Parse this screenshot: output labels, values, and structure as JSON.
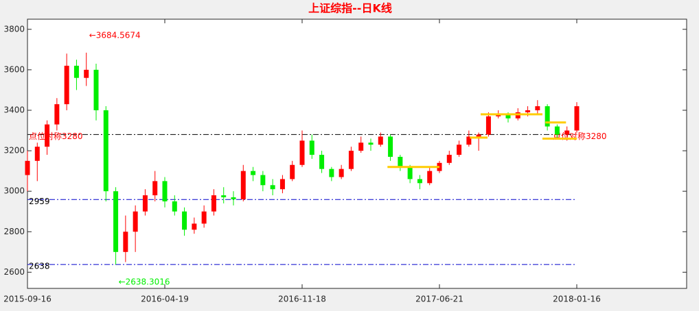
{
  "chart_data": {
    "type": "candlestick",
    "title": "上证综指--日K线",
    "xlim": [
      0,
      672
    ],
    "xticks": [
      {
        "value": 0,
        "label": "2015-09-16"
      },
      {
        "value": 140,
        "label": "2016-04-19"
      },
      {
        "value": 280,
        "label": "2016-11-18"
      },
      {
        "value": 420,
        "label": "2017-06-21"
      },
      {
        "value": 560,
        "label": "2018-01-16"
      }
    ],
    "ylim": [
      2520,
      3850
    ],
    "yticks": [
      2600,
      2800,
      3000,
      3200,
      3400,
      3600,
      3800
    ],
    "up_color": "#ff0000",
    "down_color": "#00ee00",
    "x": [
      0,
      10,
      20,
      30,
      40,
      50,
      60,
      70,
      80,
      90,
      100,
      110,
      120,
      130,
      140,
      150,
      160,
      170,
      180,
      190,
      200,
      210,
      220,
      230,
      240,
      250,
      260,
      270,
      280,
      290,
      300,
      310,
      320,
      330,
      340,
      350,
      360,
      370,
      380,
      390,
      400,
      410,
      420,
      430,
      440,
      450,
      460,
      470,
      480,
      490,
      500,
      510,
      520,
      530,
      540,
      550,
      560
    ],
    "open": [
      3080,
      3150,
      3220,
      3330,
      3430,
      3620,
      3560,
      3600,
      3400,
      3000,
      2700,
      2800,
      2900,
      2980,
      3050,
      2950,
      2900,
      2810,
      2840,
      2900,
      2980,
      2970,
      2960,
      3100,
      3080,
      3030,
      3010,
      3060,
      3130,
      3250,
      3180,
      3110,
      3070,
      3110,
      3200,
      3240,
      3230,
      3270,
      3170,
      3120,
      3060,
      3040,
      3100,
      3140,
      3180,
      3230,
      3270,
      3280,
      3370,
      3380,
      3360,
      3390,
      3400,
      3420,
      3320,
      3280,
      3300
    ],
    "high": [
      3200,
      3240,
      3350,
      3460,
      3680,
      3650,
      3684.5674,
      3630,
      3420,
      3020,
      2880,
      2930,
      3010,
      3100,
      3070,
      2980,
      2920,
      2870,
      2930,
      3010,
      3020,
      3000,
      3130,
      3120,
      3100,
      3060,
      3080,
      3150,
      3300,
      3280,
      3200,
      3120,
      3130,
      3220,
      3270,
      3260,
      3290,
      3280,
      3180,
      3130,
      3080,
      3120,
      3150,
      3200,
      3250,
      3300,
      3290,
      3390,
      3400,
      3390,
      3410,
      3420,
      3450,
      3430,
      3330,
      3320,
      3440
    ],
    "low": [
      3000,
      3050,
      3180,
      3300,
      3400,
      3500,
      3520,
      3350,
      2950,
      2638.3016,
      2650,
      2700,
      2880,
      2950,
      2920,
      2880,
      2780,
      2790,
      2820,
      2880,
      2940,
      2930,
      2950,
      3050,
      3000,
      2980,
      2990,
      3050,
      3120,
      3160,
      3090,
      3050,
      3060,
      3100,
      3190,
      3200,
      3220,
      3150,
      3100,
      3040,
      3010,
      3030,
      3090,
      3130,
      3170,
      3220,
      3200,
      3270,
      3360,
      3340,
      3350,
      3370,
      3380,
      3300,
      3260,
      3250,
      3290
    ],
    "close": [
      3150,
      3220,
      3330,
      3430,
      3620,
      3560,
      3600,
      3400,
      3000,
      2700,
      2800,
      2900,
      2980,
      3050,
      2950,
      2900,
      2810,
      2840,
      2900,
      2980,
      2970,
      2960,
      3100,
      3080,
      3030,
      3010,
      3060,
      3130,
      3250,
      3180,
      3110,
      3070,
      3110,
      3200,
      3240,
      3230,
      3270,
      3170,
      3120,
      3060,
      3040,
      3100,
      3140,
      3180,
      3230,
      3270,
      3280,
      3370,
      3380,
      3360,
      3390,
      3400,
      3420,
      3320,
      3280,
      3300,
      3420
    ],
    "levels": [
      {
        "value": 3280,
        "label": "点位对称3280",
        "color": "#000000",
        "label_color": "#ff0000"
      },
      {
        "value": 2959,
        "color": "#0000cc",
        "label_color": "#000000"
      },
      {
        "value": 2638,
        "color": "#0000cc",
        "label_color": "#000000"
      }
    ],
    "segments": [
      {
        "y": 3120,
        "x": [
          367,
          420
        ]
      },
      {
        "y": 3265,
        "x": [
          451,
          469
        ]
      },
      {
        "y": 3380,
        "x": [
          462,
          525
        ]
      },
      {
        "y": 3340,
        "x": [
          528,
          549
        ]
      },
      {
        "y": 3260,
        "x": [
          525,
          560
        ]
      }
    ],
    "segment_color": "#ffcc00",
    "annotations": [
      {
        "text": "←3684.5674",
        "color": "#ff0000",
        "at": 6,
        "side": "high"
      },
      {
        "text": "←2638.3016",
        "color": "#00ee00",
        "at": 9,
        "side": "low"
      }
    ]
  }
}
